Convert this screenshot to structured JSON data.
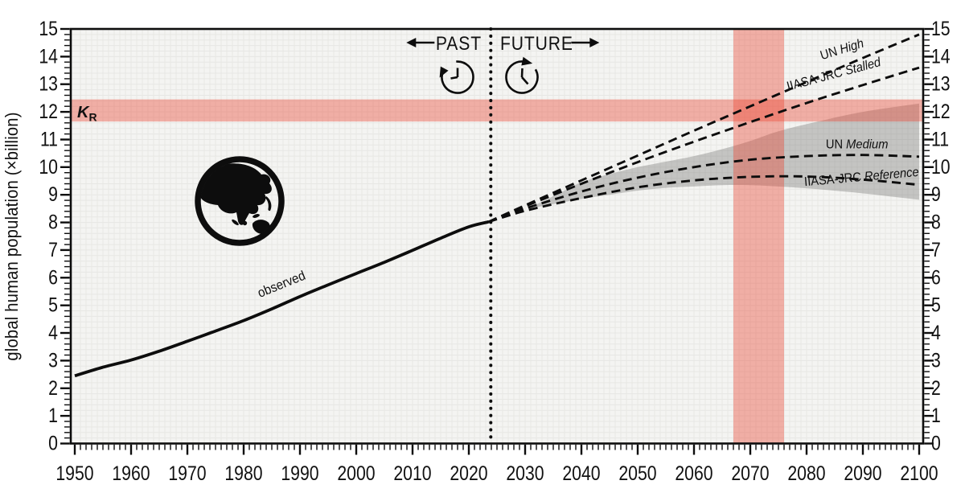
{
  "chart_data": {
    "type": "line",
    "title": "",
    "xlabel": "",
    "ylabel": "global human population (×billion)",
    "xlim": [
      1950,
      2100
    ],
    "ylim": [
      0,
      15
    ],
    "x_major_step": 10,
    "x_minor_step": 1,
    "y_major_step": 1,
    "y_minor_step": 0.2,
    "grid": "fine light mesh, on",
    "legend_position": "labels written along lines",
    "divider": {
      "x": 2023.9,
      "past_label": "PAST",
      "future_label": "FUTURE"
    },
    "carrying_capacity_band": {
      "label": "K",
      "label_subscript": "R",
      "y_from": 11.65,
      "y_to": 12.45
    },
    "peak_timing_band": {
      "x_from": 2067,
      "x_to": 2076
    },
    "series": [
      {
        "name": "observed",
        "style": "solid",
        "points": [
          [
            1950,
            2.45
          ],
          [
            1955,
            2.76
          ],
          [
            1960,
            3.02
          ],
          [
            1965,
            3.34
          ],
          [
            1970,
            3.7
          ],
          [
            1975,
            4.07
          ],
          [
            1980,
            4.45
          ],
          [
            1985,
            4.87
          ],
          [
            1990,
            5.32
          ],
          [
            1995,
            5.74
          ],
          [
            2000,
            6.15
          ],
          [
            2005,
            6.56
          ],
          [
            2010,
            6.99
          ],
          [
            2015,
            7.43
          ],
          [
            2020,
            7.84
          ],
          [
            2023.5,
            8.02
          ]
        ]
      },
      {
        "name": "UN High",
        "style": "dashed",
        "points": [
          [
            2023.5,
            8.02
          ],
          [
            2030,
            8.62
          ],
          [
            2040,
            9.52
          ],
          [
            2050,
            10.42
          ],
          [
            2060,
            11.32
          ],
          [
            2070,
            12.2
          ],
          [
            2080,
            13.08
          ],
          [
            2090,
            13.95
          ],
          [
            2100,
            14.8
          ]
        ]
      },
      {
        "name": "IIASA-JRC Stalled",
        "style": "dashed",
        "points": [
          [
            2023.5,
            8.02
          ],
          [
            2030,
            8.58
          ],
          [
            2040,
            9.4
          ],
          [
            2050,
            10.18
          ],
          [
            2060,
            10.92
          ],
          [
            2070,
            11.63
          ],
          [
            2080,
            12.32
          ],
          [
            2090,
            12.97
          ],
          [
            2100,
            13.6
          ]
        ]
      },
      {
        "name": "UN Medium",
        "style": "dashed",
        "points": [
          [
            2023.5,
            8.02
          ],
          [
            2030,
            8.5
          ],
          [
            2040,
            9.12
          ],
          [
            2050,
            9.62
          ],
          [
            2060,
            10.0
          ],
          [
            2070,
            10.27
          ],
          [
            2080,
            10.4
          ],
          [
            2090,
            10.44
          ],
          [
            2100,
            10.38
          ]
        ]
      },
      {
        "name": "IIASA-JRC Reference",
        "style": "dashed",
        "points": [
          [
            2023.5,
            8.02
          ],
          [
            2030,
            8.42
          ],
          [
            2040,
            8.88
          ],
          [
            2050,
            9.27
          ],
          [
            2060,
            9.52
          ],
          [
            2070,
            9.65
          ],
          [
            2080,
            9.66
          ],
          [
            2090,
            9.55
          ],
          [
            2100,
            9.36
          ]
        ]
      }
    ],
    "uncertainty_band": {
      "top": [
        [
          2032,
          8.65
        ],
        [
          2036,
          9.05
        ],
        [
          2040,
          9.45
        ],
        [
          2045,
          9.75
        ],
        [
          2050,
          10.0
        ],
        [
          2055,
          10.2
        ],
        [
          2060,
          10.4
        ],
        [
          2065,
          10.65
        ],
        [
          2070,
          10.95
        ],
        [
          2075,
          11.3
        ],
        [
          2082,
          11.65
        ],
        [
          2090,
          12.0
        ],
        [
          2100,
          12.3
        ]
      ],
      "bottom": [
        [
          2032,
          8.55
        ],
        [
          2036,
          8.7
        ],
        [
          2040,
          8.85
        ],
        [
          2045,
          9.0
        ],
        [
          2050,
          9.15
        ],
        [
          2055,
          9.25
        ],
        [
          2060,
          9.3
        ],
        [
          2065,
          9.35
        ],
        [
          2070,
          9.35
        ],
        [
          2075,
          9.3
        ],
        [
          2082,
          9.2
        ],
        [
          2090,
          9.05
        ],
        [
          2100,
          8.82
        ]
      ]
    },
    "line_labels": [
      {
        "id": "observed-label",
        "prefix": "observed",
        "italic": "",
        "x": 1987,
        "y": 5.62,
        "rot": -22,
        "anchor": "middle",
        "size": 16.5
      },
      {
        "id": "un-high-label",
        "prefix": "UN ",
        "italic": "High",
        "x": 2086.5,
        "y": 14.12,
        "rot": -17,
        "anchor": "middle",
        "size": 16
      },
      {
        "id": "iiasa-jrc-stalled-label",
        "prefix": "IIASA-JRC ",
        "italic": "Stalled",
        "x": 2085,
        "y": 13.22,
        "rot": -15,
        "anchor": "middle",
        "size": 16
      },
      {
        "id": "un-medium-label",
        "prefix": "UN ",
        "italic": "Medium",
        "x": 2094.5,
        "y": 10.68,
        "rot": 0,
        "anchor": "end",
        "size": 16
      },
      {
        "id": "iiasa-jrc-reference-label",
        "prefix": "IIASA-JRC ",
        "italic": "Reference",
        "x": 2100,
        "y": 9.68,
        "rot": -5,
        "anchor": "end",
        "size": 16
      }
    ],
    "icons": [
      "earth-globe-icon",
      "past-clock-icon",
      "future-clock-icon",
      "past-arrow-icon",
      "future-arrow-icon"
    ],
    "colors": {
      "line": "#0d0d0d",
      "highlight_red": "rgba(235,70,50,0.40)",
      "uncertainty_gray": "rgba(110,110,108,0.36)",
      "plot_background": "#f4f4f2",
      "grid_line": "#e7e7e4",
      "text": "#111111"
    }
  }
}
